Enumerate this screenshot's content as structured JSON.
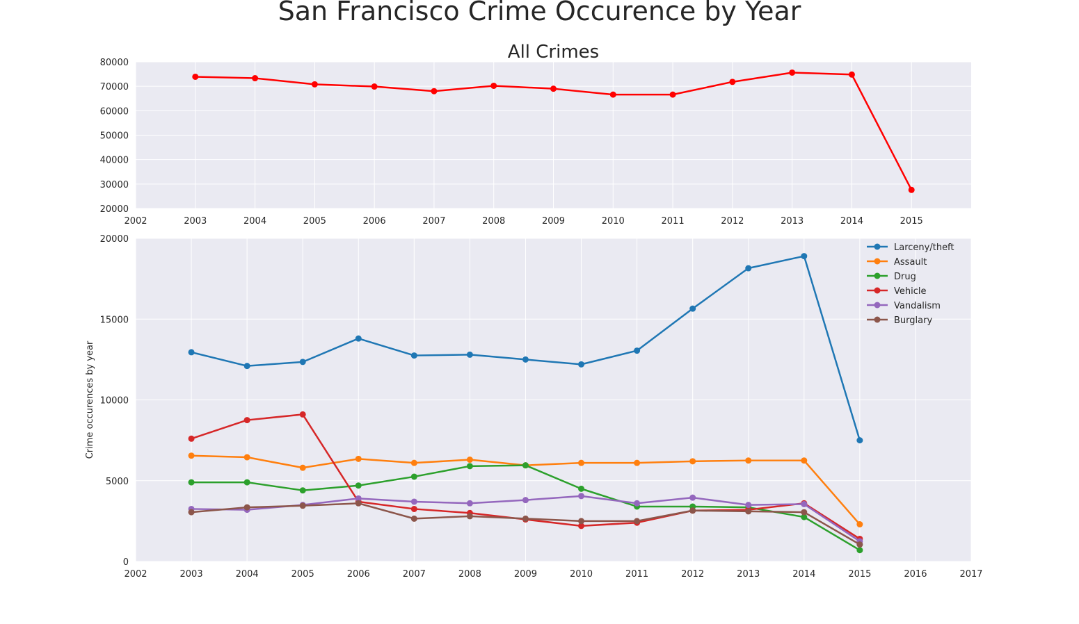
{
  "figure": {
    "title": "San Francisco Crime Occurence by Year"
  },
  "chart_data": [
    {
      "type": "line",
      "title": "All Crimes",
      "xlabel": "",
      "ylabel": "",
      "xlim": [
        2002,
        2016
      ],
      "ylim": [
        20000,
        80000
      ],
      "xticks": [
        2002,
        2003,
        2004,
        2005,
        2006,
        2007,
        2008,
        2009,
        2010,
        2011,
        2012,
        2013,
        2014,
        2015
      ],
      "yticks": [
        20000,
        30000,
        40000,
        50000,
        60000,
        70000,
        80000
      ],
      "grid": true,
      "series": [
        {
          "color": "#ff0000",
          "x": [
            2003,
            2004,
            2005,
            2006,
            2007,
            2008,
            2009,
            2010,
            2011,
            2012,
            2013,
            2014,
            2015
          ],
          "values": [
            73900,
            73300,
            70800,
            69900,
            68000,
            70200,
            69000,
            66600,
            66600,
            71800,
            75600,
            74800,
            27600
          ]
        }
      ]
    },
    {
      "type": "line",
      "title": "",
      "xlabel": "",
      "ylabel": "Crime occurences by year",
      "xlim": [
        2002,
        2017
      ],
      "ylim": [
        0,
        20000
      ],
      "xticks": [
        2002,
        2003,
        2004,
        2005,
        2006,
        2007,
        2008,
        2009,
        2010,
        2011,
        2012,
        2013,
        2014,
        2015,
        2016,
        2017
      ],
      "yticks": [
        0,
        5000,
        10000,
        15000,
        20000
      ],
      "grid": true,
      "legend": "top-right",
      "x": [
        2003,
        2004,
        2005,
        2006,
        2007,
        2008,
        2009,
        2010,
        2011,
        2012,
        2013,
        2014,
        2015
      ],
      "series": [
        {
          "name": "Larceny/theft",
          "color": "#1f77b4",
          "values": [
            12950,
            12100,
            12350,
            13800,
            12750,
            12800,
            12500,
            12200,
            13050,
            15650,
            18150,
            18900,
            7500
          ]
        },
        {
          "name": "Assault",
          "color": "#ff7f0e",
          "values": [
            6550,
            6450,
            5800,
            6350,
            6100,
            6300,
            5950,
            6100,
            6100,
            6200,
            6250,
            6250,
            2300
          ]
        },
        {
          "name": "Drug",
          "color": "#2ca02c",
          "values": [
            4900,
            4900,
            4400,
            4700,
            5250,
            5900,
            5950,
            4500,
            3400,
            3400,
            3350,
            2750,
            700
          ]
        },
        {
          "name": "Vehicle",
          "color": "#d62728",
          "values": [
            7600,
            8750,
            9100,
            3700,
            3250,
            3000,
            2600,
            2200,
            2400,
            3150,
            3200,
            3600,
            1400
          ]
        },
        {
          "name": "Vandalism",
          "color": "#9467bd",
          "values": [
            3250,
            3200,
            3500,
            3900,
            3700,
            3600,
            3800,
            4050,
            3600,
            3950,
            3500,
            3550,
            1250
          ]
        },
        {
          "name": "Burglary",
          "color": "#8c564b",
          "values": [
            3050,
            3350,
            3450,
            3600,
            2650,
            2800,
            2650,
            2500,
            2500,
            3150,
            3100,
            3050,
            1050
          ]
        }
      ]
    }
  ]
}
